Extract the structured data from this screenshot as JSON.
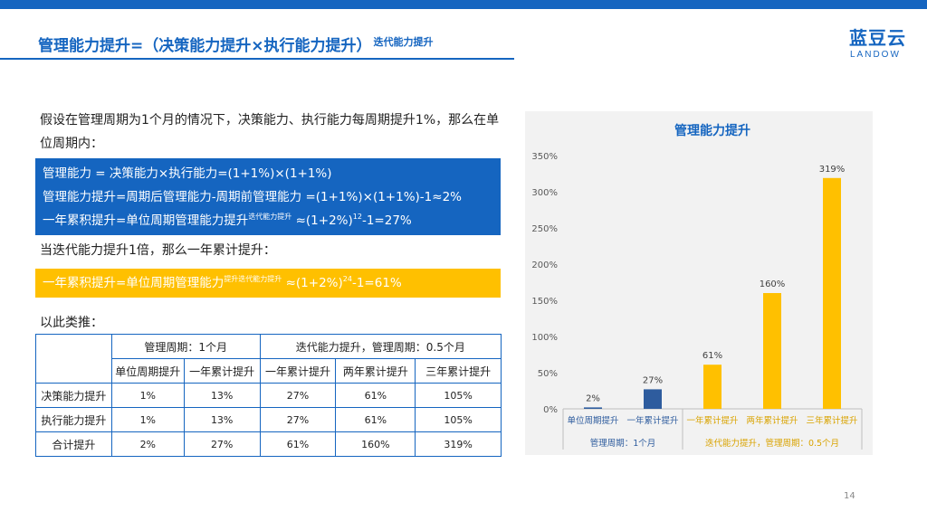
{
  "title": {
    "main": "管理能力提升=（决策能力提升×执行能力提升）",
    "sup": "迭代能力提升"
  },
  "logo": {
    "cn": "蓝豆云",
    "en": "LANDOW"
  },
  "intro": "假设在管理周期为1个月的情况下，决策能力、执行能力每周期提升1%，那么在单位周期内：",
  "blue_box": {
    "line1": "管理能力 = 决策能力×执行能力=(1+1%)×(1+1%)",
    "line2": "管理能力提升=周期后管理能力-周期前管理能力 =(1+1%)×(1+1%)-1≈2%",
    "line3_a": "一年累积提升=单位周期管理能力提升",
    "line3_sup": "迭代能力提升",
    "line3_b": " ≈(1+2%)",
    "line3_exp": "12",
    "line3_c": "-1=27%"
  },
  "mid_text": "当迭代能力提升1倍，那么一年累计提升：",
  "yellow_box": {
    "a": "一年累积提升=单位周期管理能力",
    "sup": "提升迭代能力提升",
    "b": " ≈(1+2%)",
    "exp": "24",
    "c": "-1=61%"
  },
  "analog": "以此类推：",
  "table": {
    "group1": "管理周期：1个月",
    "group2": "迭代能力提升，管理周期：0.5个月",
    "cols": [
      "单位周期提升",
      "一年累计提升",
      "一年累计提升",
      "两年累计提升",
      "三年累计提升"
    ],
    "rows": [
      {
        "label": "决策能力提升",
        "values": [
          "1%",
          "13%",
          "27%",
          "61%",
          "105%"
        ]
      },
      {
        "label": "执行能力提升",
        "values": [
          "1%",
          "13%",
          "27%",
          "61%",
          "105%"
        ]
      },
      {
        "label": "合计提升",
        "values": [
          "2%",
          "27%",
          "61%",
          "160%",
          "319%"
        ]
      }
    ]
  },
  "chart_data": {
    "type": "bar",
    "title": "管理能力提升",
    "categories": [
      "单位周期提升",
      "一年累计提升",
      "一年累计提升",
      "两年累计提升",
      "三年累计提升"
    ],
    "values": [
      2,
      27,
      61,
      160,
      319
    ],
    "data_labels": [
      "2%",
      "27%",
      "61%",
      "160%",
      "319%"
    ],
    "bar_colors": [
      "#2e5c9e",
      "#2e5c9e",
      "#ffc000",
      "#ffc000",
      "#ffc000"
    ],
    "ylim": [
      0,
      350
    ],
    "yticks": [
      "0%",
      "50%",
      "100%",
      "150%",
      "200%",
      "250%",
      "300%",
      "350%"
    ],
    "groups": [
      {
        "label": "管理周期：1个月",
        "color": "#2e5c9e"
      },
      {
        "label": "迭代能力提升，管理周期：0.5个月",
        "color": "#ffc000"
      }
    ],
    "grid": false
  },
  "colors": {
    "accent": "#1565c0",
    "highlight": "#ffc000"
  },
  "page_number": "14"
}
